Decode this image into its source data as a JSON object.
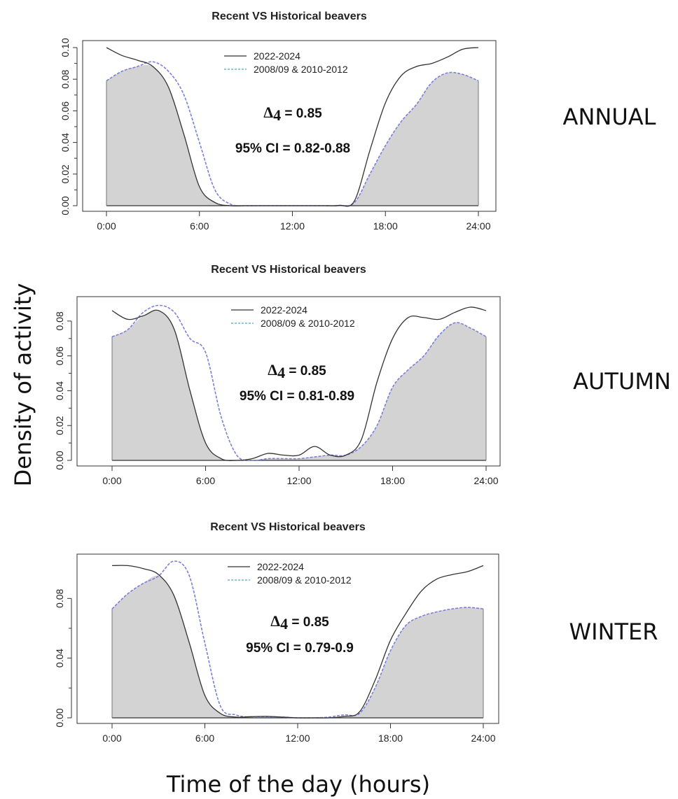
{
  "figure": {
    "ylabel": "Density of activity",
    "xlabel": "Time of the day (hours)",
    "season_labels": [
      "ANNUAL",
      "AUTUMN",
      "WINTER"
    ]
  },
  "chart_data": [
    {
      "type": "area",
      "title": "Recent VS Historical beavers",
      "season": "ANNUAL",
      "annotation": {
        "delta_symbol": "Δ",
        "delta_subscript": "4",
        "delta_text": " = 0.85",
        "ci": "95% CI = 0.82-0.88"
      },
      "xlim": [
        0,
        24
      ],
      "ylim": [
        0,
        0.1
      ],
      "xticks": [
        0,
        6,
        12,
        18,
        24
      ],
      "xtick_labels": [
        "0:00",
        "6:00",
        "12:00",
        "18:00",
        "24:00"
      ],
      "yticks": [
        0,
        0.02,
        0.04,
        0.06,
        0.08,
        0.1
      ],
      "ytick_labels": [
        "0.00",
        "0.02",
        "0.04",
        "0.06",
        "0.08",
        "0.10"
      ],
      "legend_position": "top-center",
      "legend": [
        "2022-2024",
        "2008/09 & 2010-2012"
      ],
      "overlap_color": "#d3d3d3",
      "series": [
        {
          "name": "2022-2024",
          "style": "solid",
          "color": "#333333",
          "x": [
            0,
            1,
            2,
            3,
            4,
            5,
            6,
            7,
            8,
            9,
            10,
            11,
            12,
            13,
            14,
            15,
            16,
            17,
            18,
            19,
            20,
            21,
            22,
            23,
            24
          ],
          "y": [
            0.1,
            0.095,
            0.092,
            0.088,
            0.075,
            0.045,
            0.012,
            0.002,
            0.0,
            0.0,
            0.0,
            0.0,
            0.0,
            0.0,
            0.0,
            0.0002,
            0.003,
            0.035,
            0.065,
            0.082,
            0.088,
            0.09,
            0.094,
            0.099,
            0.1
          ]
        },
        {
          "name": "2008/09 & 2010-2012",
          "style": "dashed",
          "color": "#7b7fd6",
          "x": [
            0,
            1,
            2,
            3,
            4,
            5,
            6,
            7,
            8,
            9,
            10,
            11,
            12,
            13,
            14,
            15,
            16,
            17,
            18,
            19,
            20,
            21,
            22,
            23,
            24
          ],
          "y": [
            0.079,
            0.085,
            0.088,
            0.091,
            0.085,
            0.07,
            0.04,
            0.01,
            0.001,
            0.0,
            0.0,
            0.0,
            0.0,
            0.0,
            0.0,
            0.0001,
            0.002,
            0.02,
            0.038,
            0.053,
            0.064,
            0.078,
            0.084,
            0.083,
            0.079
          ]
        }
      ]
    },
    {
      "type": "area",
      "title": "Recent VS Historical beavers",
      "season": "AUTUMN",
      "annotation": {
        "delta_symbol": "Δ",
        "delta_subscript": "4",
        "delta_text": " = 0.85",
        "ci": "95% CI = 0.81-0.89"
      },
      "xlim": [
        0,
        24
      ],
      "ylim": [
        0,
        0.09
      ],
      "xticks": [
        0,
        6,
        12,
        18,
        24
      ],
      "xtick_labels": [
        "0:00",
        "6:00",
        "12:00",
        "18:00",
        "24:00"
      ],
      "yticks": [
        0,
        0.02,
        0.04,
        0.06,
        0.08
      ],
      "ytick_labels": [
        "0.00",
        "0.02",
        "0.04",
        "0.06",
        "0.08"
      ],
      "legend_position": "top-center",
      "legend": [
        "2022-2024",
        "2008/09 & 2010-2012"
      ],
      "overlap_color": "#d3d3d3",
      "series": [
        {
          "name": "2022-2024",
          "style": "solid",
          "color": "#333333",
          "x": [
            0,
            1,
            2,
            3,
            4,
            5,
            6,
            7,
            8,
            9,
            10,
            11,
            12,
            13,
            14,
            15,
            16,
            17,
            18,
            19,
            20,
            21,
            22,
            23,
            24
          ],
          "y": [
            0.086,
            0.081,
            0.083,
            0.086,
            0.075,
            0.04,
            0.01,
            0.001,
            0.0,
            0.001,
            0.004,
            0.003,
            0.003,
            0.008,
            0.003,
            0.003,
            0.012,
            0.045,
            0.07,
            0.082,
            0.082,
            0.081,
            0.085,
            0.088,
            0.086
          ]
        },
        {
          "name": "2008/09 & 2010-2012",
          "style": "dashed",
          "color": "#7b7fd6",
          "x": [
            0,
            1,
            2,
            3,
            4,
            5,
            6,
            7,
            8,
            9,
            10,
            11,
            12,
            13,
            14,
            15,
            16,
            17,
            18,
            19,
            20,
            21,
            22,
            23,
            24
          ],
          "y": [
            0.071,
            0.075,
            0.085,
            0.089,
            0.085,
            0.07,
            0.062,
            0.025,
            0.003,
            0.0,
            0.001,
            0.001,
            0.001,
            0.002,
            0.003,
            0.003,
            0.008,
            0.02,
            0.042,
            0.052,
            0.06,
            0.072,
            0.079,
            0.076,
            0.071
          ]
        }
      ]
    },
    {
      "type": "area",
      "title": "Recent VS Historical beavers",
      "season": "WINTER",
      "annotation": {
        "delta_symbol": "Δ",
        "delta_subscript": "4",
        "delta_text": " = 0.85",
        "ci": "95% CI = 0.79-0.9"
      },
      "xlim": [
        0,
        24
      ],
      "ylim": [
        0,
        0.105
      ],
      "xticks": [
        0,
        6,
        12,
        18,
        24
      ],
      "xtick_labels": [
        "0:00",
        "6:00",
        "12:00",
        "18:00",
        "24:00"
      ],
      "yticks": [
        0,
        0.04,
        0.08
      ],
      "ytick_labels": [
        "0.00",
        "0.04",
        "0.08"
      ],
      "legend_position": "top-center",
      "legend": [
        "2022-2024",
        "2008/09 & 2010-2012"
      ],
      "overlap_color": "#d3d3d3",
      "series": [
        {
          "name": "2022-2024",
          "style": "solid",
          "color": "#333333",
          "x": [
            0,
            1,
            2,
            3,
            4,
            5,
            6,
            7,
            8,
            9,
            10,
            11,
            12,
            13,
            14,
            15,
            16,
            17,
            18,
            19,
            20,
            21,
            22,
            23,
            24
          ],
          "y": [
            0.102,
            0.102,
            0.1,
            0.096,
            0.082,
            0.05,
            0.015,
            0.003,
            0.0005,
            0.0008,
            0.001,
            0.0005,
            0.0,
            0.0,
            0.0,
            0.001,
            0.004,
            0.025,
            0.052,
            0.07,
            0.085,
            0.093,
            0.096,
            0.098,
            0.102
          ]
        },
        {
          "name": "2008/09 & 2010-2012",
          "style": "dashed",
          "color": "#7b7fd6",
          "x": [
            0,
            1,
            2,
            3,
            4,
            5,
            6,
            7,
            8,
            9,
            10,
            11,
            12,
            13,
            14,
            15,
            16,
            17,
            18,
            19,
            20,
            21,
            22,
            23,
            24
          ],
          "y": [
            0.073,
            0.083,
            0.09,
            0.095,
            0.105,
            0.095,
            0.05,
            0.008,
            0.002,
            0.0005,
            0.0005,
            0.0005,
            0.0,
            0.0,
            0.0005,
            0.002,
            0.003,
            0.02,
            0.045,
            0.062,
            0.068,
            0.071,
            0.073,
            0.074,
            0.073
          ]
        }
      ]
    }
  ]
}
